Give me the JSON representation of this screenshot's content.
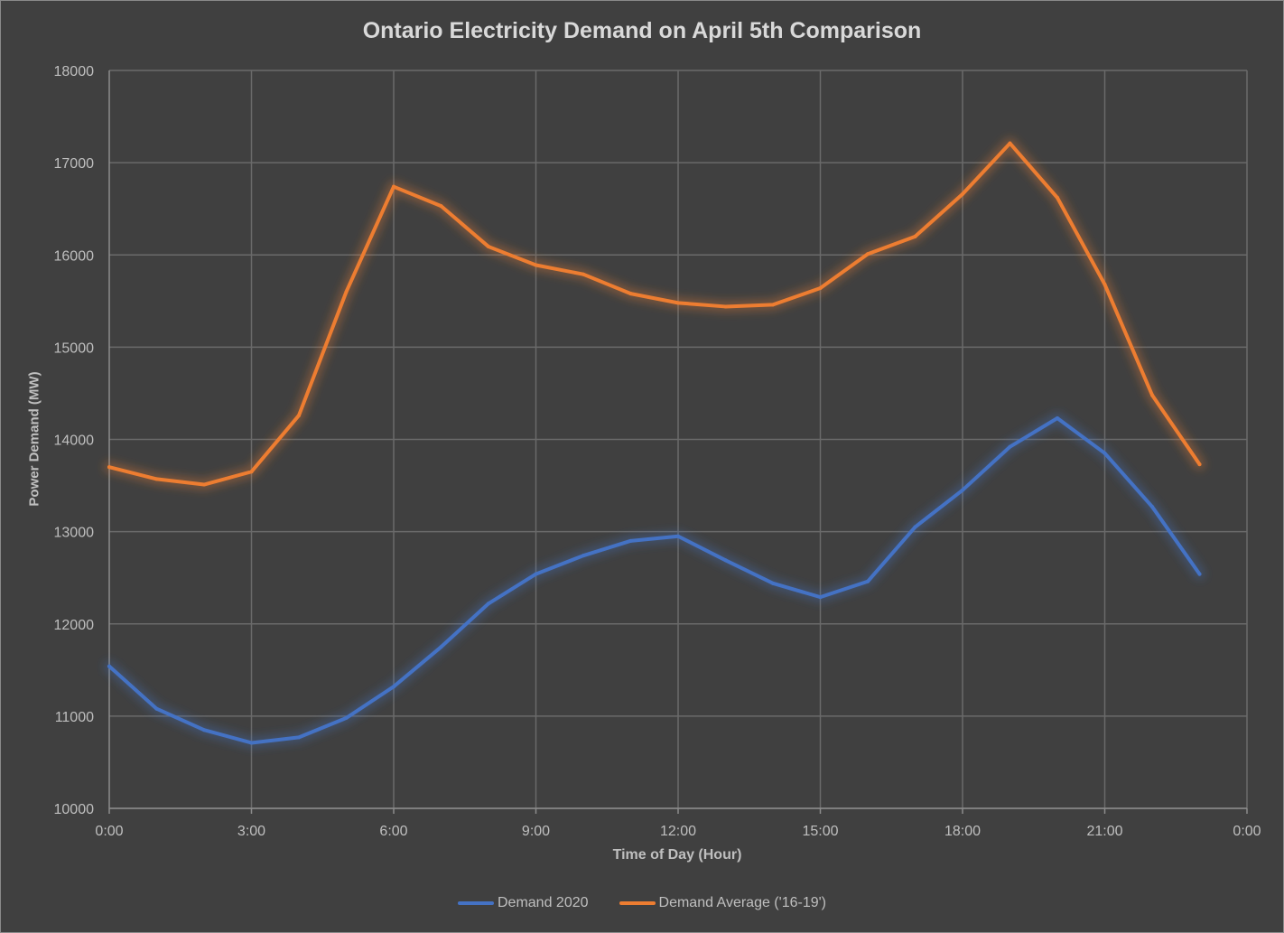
{
  "chart_data": {
    "type": "line",
    "title": "Ontario Electricity Demand on April 5th Comparison",
    "xlabel": "Time of Day (Hour)",
    "ylabel": "Power Demand (MW)",
    "x": [
      0,
      1,
      2,
      3,
      4,
      5,
      6,
      7,
      8,
      9,
      10,
      11,
      12,
      13,
      14,
      15,
      16,
      17,
      18,
      19,
      20,
      21,
      22,
      23
    ],
    "xlim": [
      0,
      24
    ],
    "x_ticks": [
      0,
      3,
      6,
      9,
      12,
      15,
      18,
      21,
      24
    ],
    "x_tick_labels": [
      "0:00",
      "3:00",
      "6:00",
      "9:00",
      "12:00",
      "15:00",
      "18:00",
      "21:00",
      "0:00"
    ],
    "ylim": [
      10000,
      18000
    ],
    "y_ticks": [
      10000,
      11000,
      12000,
      13000,
      14000,
      15000,
      16000,
      17000,
      18000
    ],
    "y_tick_labels": [
      "10000",
      "11000",
      "12000",
      "13000",
      "14000",
      "15000",
      "16000",
      "17000",
      "18000"
    ],
    "grid": true,
    "legend_position": "bottom",
    "series": [
      {
        "name": "Demand 2020",
        "color": "#4472c4",
        "values": [
          11540,
          11080,
          10850,
          10710,
          10770,
          10980,
          11320,
          11750,
          12220,
          12540,
          12740,
          12900,
          12950,
          12690,
          12440,
          12290,
          12460,
          13050,
          13450,
          13920,
          14230,
          13850,
          13270,
          12540
        ]
      },
      {
        "name": "Demand Average ('16-19')",
        "color": "#ed7d31",
        "values": [
          13700,
          13570,
          13510,
          13650,
          14260,
          15600,
          16740,
          16530,
          16090,
          15890,
          15790,
          15580,
          15480,
          15440,
          15460,
          15640,
          16010,
          16200,
          16660,
          17210,
          16620,
          15680,
          14480,
          13730
        ]
      }
    ]
  }
}
